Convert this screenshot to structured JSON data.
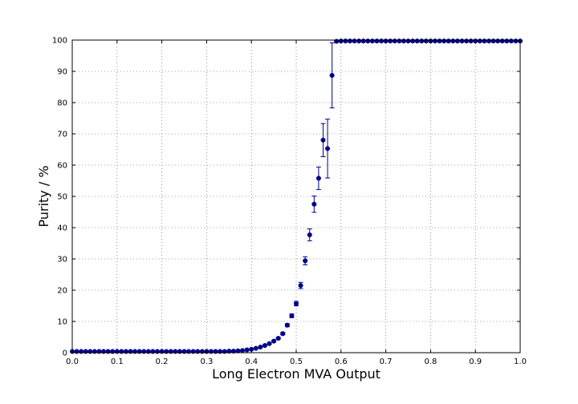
{
  "chart_data": {
    "type": "scatter",
    "title": "",
    "xlabel": "Long Electron MVA Output",
    "ylabel": "Purity / %",
    "xlim": [
      0.0,
      1.0
    ],
    "ylim": [
      0,
      100
    ],
    "grid": true,
    "x_ticks": [
      0.0,
      0.1,
      0.2,
      0.3,
      0.4,
      0.5,
      0.6,
      0.7,
      0.8,
      0.9,
      1.0
    ],
    "y_ticks": [
      0,
      10,
      20,
      30,
      40,
      50,
      60,
      70,
      80,
      90,
      100
    ],
    "x_tick_labels": [
      "0.0",
      "0.1",
      "0.2",
      "0.3",
      "0.4",
      "0.5",
      "0.6",
      "0.7",
      "0.8",
      "0.9",
      "1.0"
    ],
    "y_tick_labels": [
      "0",
      "10",
      "20",
      "30",
      "40",
      "50",
      "60",
      "70",
      "80",
      "90",
      "100"
    ],
    "marker_color": "#00008b",
    "series": [
      {
        "x": [
          0.0,
          0.01,
          0.02,
          0.03,
          0.04,
          0.05,
          0.06,
          0.07,
          0.08,
          0.09,
          0.1,
          0.11,
          0.12,
          0.13,
          0.14,
          0.15,
          0.16,
          0.17,
          0.18,
          0.19,
          0.2,
          0.21,
          0.22,
          0.23,
          0.24,
          0.25,
          0.26,
          0.27,
          0.28,
          0.29,
          0.3,
          0.31,
          0.32,
          0.33,
          0.34,
          0.35,
          0.36,
          0.37,
          0.38,
          0.39,
          0.4,
          0.41,
          0.42,
          0.43,
          0.44,
          0.45,
          0.46,
          0.47,
          0.48,
          0.49,
          0.5,
          0.51,
          0.52,
          0.53,
          0.54,
          0.55,
          0.56,
          0.57,
          0.58,
          0.59,
          0.6,
          0.61,
          0.62,
          0.63,
          0.64,
          0.65,
          0.66,
          0.67,
          0.68,
          0.69,
          0.7,
          0.71,
          0.72,
          0.73,
          0.74,
          0.75,
          0.76,
          0.77,
          0.78,
          0.79,
          0.8,
          0.81,
          0.82,
          0.83,
          0.84,
          0.85,
          0.86,
          0.87,
          0.88,
          0.89,
          0.9,
          0.91,
          0.92,
          0.93,
          0.94,
          0.95,
          0.96,
          0.97,
          0.98,
          0.99,
          1.0
        ],
        "y": [
          0.4,
          0.4,
          0.4,
          0.4,
          0.4,
          0.4,
          0.4,
          0.4,
          0.4,
          0.4,
          0.4,
          0.4,
          0.4,
          0.4,
          0.4,
          0.4,
          0.4,
          0.4,
          0.4,
          0.4,
          0.4,
          0.4,
          0.4,
          0.4,
          0.4,
          0.4,
          0.4,
          0.4,
          0.4,
          0.4,
          0.4,
          0.4,
          0.4,
          0.4,
          0.4,
          0.5,
          0.5,
          0.6,
          0.7,
          0.9,
          1.1,
          1.4,
          1.8,
          2.3,
          2.9,
          3.7,
          4.6,
          6.1,
          8.8,
          11.8,
          15.7,
          21.5,
          29.4,
          37.7,
          47.5,
          55.8,
          68.0,
          65.3,
          88.7,
          99.6,
          99.7,
          99.7,
          99.7,
          99.7,
          99.7,
          99.7,
          99.7,
          99.7,
          99.7,
          99.7,
          99.7,
          99.7,
          99.7,
          99.7,
          99.7,
          99.7,
          99.7,
          99.7,
          99.7,
          99.7,
          99.7,
          99.7,
          99.7,
          99.7,
          99.7,
          99.7,
          99.7,
          99.7,
          99.7,
          99.7,
          99.7,
          99.7,
          99.7,
          99.7,
          99.7,
          99.7,
          99.7,
          99.7,
          99.7,
          99.7,
          99.7
        ],
        "yerr": [
          0.1,
          0.1,
          0.1,
          0.1,
          0.1,
          0.1,
          0.1,
          0.1,
          0.1,
          0.1,
          0.1,
          0.1,
          0.1,
          0.1,
          0.1,
          0.1,
          0.1,
          0.1,
          0.1,
          0.1,
          0.1,
          0.1,
          0.1,
          0.1,
          0.1,
          0.1,
          0.1,
          0.1,
          0.1,
          0.1,
          0.1,
          0.1,
          0.1,
          0.1,
          0.1,
          0.1,
          0.1,
          0.1,
          0.1,
          0.1,
          0.1,
          0.1,
          0.1,
          0.2,
          0.2,
          0.3,
          0.3,
          0.4,
          0.5,
          0.6,
          0.7,
          1.0,
          1.3,
          1.9,
          2.6,
          3.6,
          5.3,
          9.4,
          10.4,
          0.3,
          0.1,
          0.1,
          0.1,
          0.1,
          0.1,
          0.1,
          0.1,
          0.1,
          0.1,
          0.1,
          0.1,
          0.1,
          0.1,
          0.1,
          0.1,
          0.1,
          0.1,
          0.1,
          0.1,
          0.1,
          0.1,
          0.1,
          0.1,
          0.1,
          0.1,
          0.1,
          0.1,
          0.1,
          0.1,
          0.1,
          0.1,
          0.1,
          0.1,
          0.1,
          0.1,
          0.1,
          0.1,
          0.1,
          0.1,
          0.1,
          0.1
        ]
      }
    ]
  }
}
